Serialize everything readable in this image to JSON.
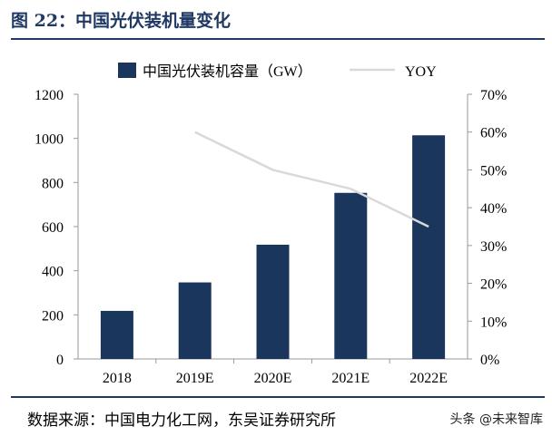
{
  "title": "图 22：中国光伏装机量变化",
  "source": "数据来源：中国电力化工网，东吴证券研究所",
  "watermark": "头条 @未来智库",
  "chart_data": {
    "type": "bar+line",
    "categories": [
      "2018",
      "2019E",
      "2020E",
      "2021E",
      "2022E"
    ],
    "series": [
      {
        "name": "中国光伏装机容量（GW）",
        "type": "bar",
        "axis": "left",
        "color": "#1a365d",
        "values": [
          218,
          347,
          518,
          753,
          1014
        ]
      },
      {
        "name": "YOY",
        "type": "line",
        "axis": "right",
        "color": "#d9d9d9",
        "values": [
          null,
          60,
          50,
          45,
          35
        ]
      }
    ],
    "ylim": [
      0,
      1200
    ],
    "yticks": [
      "0",
      "200",
      "400",
      "600",
      "800",
      "1000",
      "1200"
    ],
    "y2lim": [
      0,
      70
    ],
    "y2ticks": [
      "0%",
      "10%",
      "20%",
      "30%",
      "40%",
      "50%",
      "60%",
      "70%"
    ],
    "legend": "top",
    "grid": false
  }
}
